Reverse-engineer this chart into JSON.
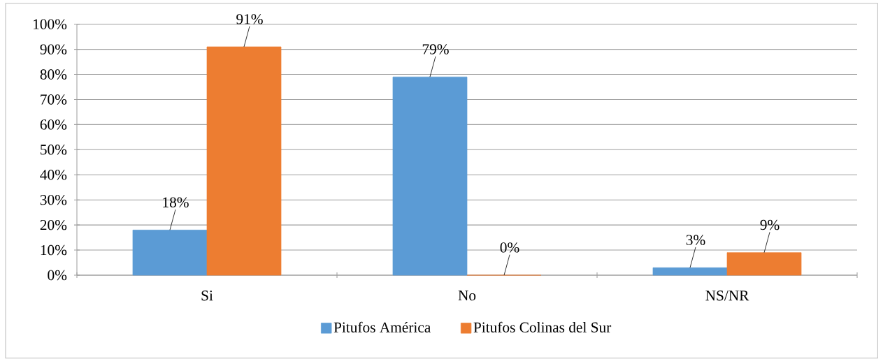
{
  "chart_data": {
    "type": "bar",
    "categories": [
      "Si",
      "No",
      "NS/NR"
    ],
    "series": [
      {
        "name": "Pitufos América",
        "color": "#5b9bd5",
        "values": [
          18,
          79,
          3
        ],
        "value_labels": [
          "18%",
          "79%",
          "3%"
        ]
      },
      {
        "name": "Pitufos Colinas del Sur",
        "color": "#ed7d31",
        "values": [
          91,
          0,
          9
        ],
        "value_labels": [
          "91%",
          "0%",
          "9%"
        ]
      }
    ],
    "ylim": [
      0,
      100
    ],
    "yticks": [
      {
        "value": 0,
        "label": "0%"
      },
      {
        "value": 10,
        "label": "10%"
      },
      {
        "value": 20,
        "label": "20%"
      },
      {
        "value": 30,
        "label": "30%"
      },
      {
        "value": 40,
        "label": "40%"
      },
      {
        "value": 50,
        "label": "50%"
      },
      {
        "value": 60,
        "label": "60%"
      },
      {
        "value": 70,
        "label": "70%"
      },
      {
        "value": 80,
        "label": "80%"
      },
      {
        "value": 90,
        "label": "90%"
      },
      {
        "value": 100,
        "label": "100%"
      }
    ],
    "grid": "y",
    "legend": "bottom"
  }
}
